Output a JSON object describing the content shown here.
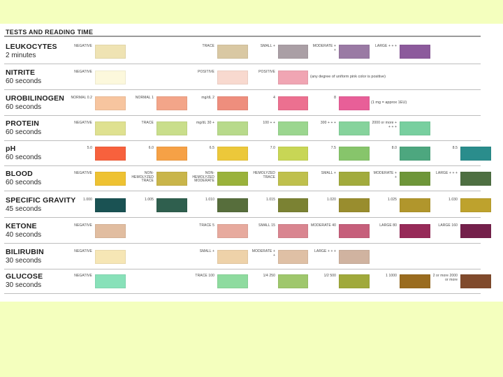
{
  "header": "TESTS AND READING TIME",
  "colors": {
    "page_background": "#f4ffbe",
    "chart_background": "#ffffff"
  },
  "rows": [
    {
      "name": "LEUKOCYTES",
      "time": "2 minutes",
      "note": "",
      "pads": [
        {
          "label": "NEGATIVE",
          "color": "#efe3b3"
        },
        {
          "label": "TRACE",
          "color": "#d9c8a3"
        },
        {
          "label": "SMALL +",
          "color": "#aa9fa5"
        },
        {
          "label": "MODERATE + +",
          "color": "#9a7aa4"
        },
        {
          "label": "LARGE + + +",
          "color": "#8c5a9c"
        }
      ]
    },
    {
      "name": "NITRITE",
      "time": "60 seconds",
      "note": "(any degree of uniform pink color is positive)",
      "pads": [
        {
          "label": "NEGATIVE",
          "color": "#fcf8dc"
        },
        {
          "label": "POSITIVE",
          "color": "#f8d9cf"
        },
        {
          "label": "POSITIVE",
          "color": "#f0a5b3"
        }
      ]
    },
    {
      "name": "UROBILINOGEN",
      "time": "60 seconds",
      "note": "(1 mg = approx 1EU)",
      "pads": [
        {
          "label": "NORMAL 0.2",
          "color": "#f7c59f"
        },
        {
          "label": "NORMAL 1",
          "color": "#f3a589"
        },
        {
          "label": "mg/dL 2",
          "color": "#ee8e7d"
        },
        {
          "label": "4",
          "color": "#ec7090"
        },
        {
          "label": "8",
          "color": "#e85f98"
        }
      ]
    },
    {
      "name": "PROTEIN",
      "time": "60 seconds",
      "note": "",
      "pads": [
        {
          "label": "NEGATIVE",
          "color": "#dfe190"
        },
        {
          "label": "TRACE",
          "color": "#c9de8b"
        },
        {
          "label": "mg/dL 30 +",
          "color": "#b8da8b"
        },
        {
          "label": "100 + +",
          "color": "#9bd68f"
        },
        {
          "label": "300 + + +",
          "color": "#86d39c"
        },
        {
          "label": "2000 or more + + + +",
          "color": "#78cf9f"
        }
      ]
    },
    {
      "name": "pH",
      "time": "60 seconds",
      "note": "",
      "pads": [
        {
          "label": "5.0",
          "color": "#f7613d"
        },
        {
          "label": "6.0",
          "color": "#f6a146"
        },
        {
          "label": "6.5",
          "color": "#ecc83a"
        },
        {
          "label": "7.0",
          "color": "#c8d655"
        },
        {
          "label": "7.5",
          "color": "#87c56b"
        },
        {
          "label": "8.0",
          "color": "#4da77f"
        },
        {
          "label": "8.5",
          "color": "#2a8d8c"
        }
      ]
    },
    {
      "name": "BLOOD",
      "time": "60 seconds",
      "note": "",
      "pads": [
        {
          "label": "NEGATIVE",
          "color": "#eec232"
        },
        {
          "label": "NON-HEMOLYZED TRACE",
          "color": "#c9b54a"
        },
        {
          "label": "NON-HEMOLYZED MODERATE",
          "color": "#9ab23b"
        },
        {
          "label": "HEMOLYZED TRACE",
          "color": "#bfc04d"
        },
        {
          "label": "SMALL +",
          "color": "#a2ab3d"
        },
        {
          "label": "MODERATE + +",
          "color": "#6e9639"
        },
        {
          "label": "LARGE + + +",
          "color": "#4e6f42"
        }
      ]
    },
    {
      "name": "SPECIFIC GRAVITY",
      "time": "45 seconds",
      "note": "",
      "pads": [
        {
          "label": "1.000",
          "color": "#1a5253"
        },
        {
          "label": "1.005",
          "color": "#2f5f4e"
        },
        {
          "label": "1.010",
          "color": "#576e3c"
        },
        {
          "label": "1.015",
          "color": "#7b8233"
        },
        {
          "label": "1.020",
          "color": "#998d2e"
        },
        {
          "label": "1.025",
          "color": "#b1962c"
        },
        {
          "label": "1.030",
          "color": "#bea22d"
        }
      ]
    },
    {
      "name": "KETONE",
      "time": "40 seconds",
      "note": "",
      "pads": [
        {
          "label": "NEGATIVE",
          "color": "#e1bda0"
        },
        {
          "label": "TRACE 5",
          "color": "#e7aa9e"
        },
        {
          "label": "SMALL 15",
          "color": "#d98590"
        },
        {
          "label": "MODERATE 40",
          "color": "#c65f7b"
        },
        {
          "label": "LARGE 80",
          "color": "#972a58"
        },
        {
          "label": "LARGE 160",
          "color": "#74204b"
        }
      ]
    },
    {
      "name": "BILIRUBIN",
      "time": "30 seconds",
      "note": "",
      "pads": [
        {
          "label": "NEGATIVE",
          "color": "#f6e6b5"
        },
        {
          "label": "SMALL +",
          "color": "#eed2a9"
        },
        {
          "label": "MODERATE + +",
          "color": "#dfc0a5"
        },
        {
          "label": "LARGE + + +",
          "color": "#d0b3a0"
        }
      ]
    },
    {
      "name": "GLUCOSE",
      "time": "30 seconds",
      "note": "",
      "pads": [
        {
          "label": "NEGATIVE",
          "color": "#88e1b9"
        },
        {
          "label": "TRACE 100",
          "color": "#8edb9f"
        },
        {
          "label": "1/4 250",
          "color": "#9fc76c"
        },
        {
          "label": "1/2 500",
          "color": "#a0a93b"
        },
        {
          "label": "1 1000",
          "color": "#9a6c1f"
        },
        {
          "label": "2 or more 2000 or more",
          "color": "#804a2c"
        }
      ]
    }
  ]
}
